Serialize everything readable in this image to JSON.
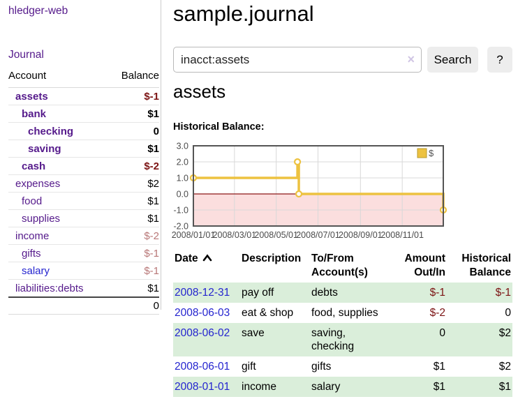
{
  "colors": {
    "purple_link": "#551a8b",
    "blue_link": "#2424cf",
    "negative_strong": "#7c1414",
    "negative_soft": "#b87777",
    "row_highlight_green": "#daeeda",
    "button_gray": "#ededed"
  },
  "sidebar": {
    "brand": "hledger-web",
    "nav_journal": "Journal",
    "accounts": {
      "col_account": "Account",
      "col_balance": "Balance",
      "rows": [
        {
          "name": "assets",
          "indent": 1,
          "bold": true,
          "balance": "$-1",
          "balance_style": "neg-strong"
        },
        {
          "name": "bank",
          "indent": 2,
          "bold": true,
          "balance": "$1",
          "balance_style": ""
        },
        {
          "name": "checking",
          "indent": 3,
          "bold": true,
          "balance": "0",
          "balance_style": ""
        },
        {
          "name": "saving",
          "indent": 3,
          "bold": true,
          "balance": "$1",
          "balance_style": ""
        },
        {
          "name": "cash",
          "indent": 2,
          "bold": true,
          "balance": "$-2",
          "balance_style": "neg-strong"
        },
        {
          "name": "expenses",
          "indent": 1,
          "bold": false,
          "balance": "$2",
          "balance_style": ""
        },
        {
          "name": "food",
          "indent": 2,
          "bold": false,
          "balance": "$1",
          "balance_style": ""
        },
        {
          "name": "supplies",
          "indent": 2,
          "bold": false,
          "balance": "$1",
          "balance_style": ""
        },
        {
          "name": "income",
          "indent": 1,
          "bold": false,
          "balance": "$-2",
          "balance_style": "neg-soft"
        },
        {
          "name": "gifts",
          "indent": 2,
          "bold": false,
          "balance": "$-1",
          "balance_style": "neg-soft"
        },
        {
          "name": "salary",
          "indent": 2,
          "bold": false,
          "link_style": "blue",
          "balance": "$-1",
          "balance_style": "neg-soft"
        },
        {
          "name": "liabilities:debts",
          "indent": 1,
          "bold": false,
          "balance": "$1",
          "balance_style": ""
        }
      ],
      "total": "0"
    }
  },
  "header": {
    "title": "sample.journal",
    "search_value": "inacct:assets",
    "clear_icon": "×",
    "search_button": "Search",
    "help_button": "?"
  },
  "account_page": {
    "heading": "assets",
    "chart_title": "Historical Balance:"
  },
  "chart_data": {
    "type": "line",
    "step": true,
    "title": "Historical Balance:",
    "legend": [
      {
        "label": "$",
        "color": "#edc240"
      }
    ],
    "legend_position": "top-right",
    "grid": true,
    "ylim": [
      -2,
      3
    ],
    "yticks": [
      3.0,
      2.0,
      1.0,
      0.0,
      -1.0,
      -2.0
    ],
    "xlim_days": [
      0,
      365
    ],
    "xticks": [
      {
        "label": "2008/01/01",
        "day": 0
      },
      {
        "label": "2008/03/01",
        "day": 60
      },
      {
        "label": "2008/05/01",
        "day": 121
      },
      {
        "label": "2008/07/01",
        "day": 182
      },
      {
        "label": "2008/09/01",
        "day": 244
      },
      {
        "label": "2008/11/01",
        "day": 305
      }
    ],
    "series": [
      {
        "name": "$",
        "points": [
          {
            "date": "2008-01-01",
            "day": 0,
            "value": 1
          },
          {
            "date": "2008-06-01",
            "day": 152,
            "value": 2
          },
          {
            "date": "2008-06-03",
            "day": 154,
            "value": 0
          },
          {
            "date": "2008-12-31",
            "day": 365,
            "value": -1
          }
        ]
      }
    ],
    "negative_region_shaded": true,
    "style": {
      "line_color": "#edc240",
      "marker_fill": "#ffffff",
      "negative_fill": "#fbdede",
      "zero_line_color": "#8c1717",
      "grid_color": "#d8d8d8",
      "border_color": "#545454",
      "tick_text_color": "#4b4b4b"
    }
  },
  "register": {
    "col_date": "Date",
    "col_description": "Description",
    "col_accounts": "To/From Account(s)",
    "col_amount": "Amount Out/In",
    "col_balance": "Historical Balance",
    "sort": "date-ascending",
    "rows": [
      {
        "date": "2008-12-31",
        "description": "pay off",
        "accounts": "debts",
        "amount": "$-1",
        "amount_negative": true,
        "balance": "$-1",
        "balance_negative": true
      },
      {
        "date": "2008-06-03",
        "description": "eat & shop",
        "accounts": "food, supplies",
        "amount": "$-2",
        "amount_negative": true,
        "balance": "0",
        "balance_negative": false
      },
      {
        "date": "2008-06-02",
        "description": "save",
        "accounts": "saving, checking",
        "amount": "0",
        "amount_negative": false,
        "balance": "$2",
        "balance_negative": false
      },
      {
        "date": "2008-06-01",
        "description": "gift",
        "accounts": "gifts",
        "amount": "$1",
        "amount_negative": false,
        "balance": "$2",
        "balance_negative": false
      },
      {
        "date": "2008-01-01",
        "description": "income",
        "accounts": "salary",
        "amount": "$1",
        "amount_negative": false,
        "balance": "$1",
        "balance_negative": false
      }
    ]
  }
}
